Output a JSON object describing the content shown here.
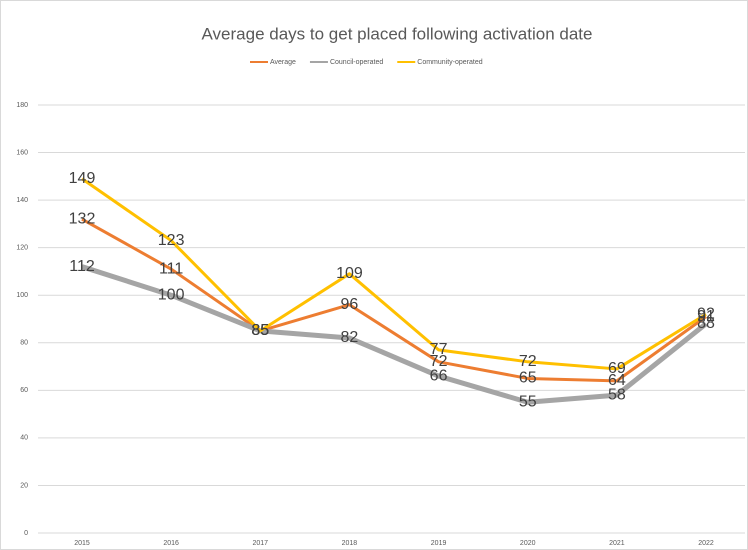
{
  "chart_data": {
    "type": "line",
    "title": "Average days to get placed following activation date",
    "categories": [
      "2015",
      "2016",
      "2017",
      "2018",
      "2019",
      "2020",
      "2021",
      "2022"
    ],
    "series": [
      {
        "name": "Average",
        "color": "#ed7d31",
        "width": 3,
        "values": [
          132,
          111,
          85,
          96,
          72,
          65,
          64,
          91
        ]
      },
      {
        "name": "Council-operated",
        "color": "#a5a5a5",
        "width": 5,
        "values": [
          112,
          100,
          85,
          82,
          66,
          55,
          58,
          88
        ]
      },
      {
        "name": "Community-operated",
        "color": "#ffc000",
        "width": 3,
        "values": [
          149,
          123,
          85,
          109,
          77,
          72,
          69,
          92
        ]
      }
    ],
    "ylim": [
      0,
      180
    ],
    "yticks": [
      0,
      20,
      40,
      60,
      80,
      100,
      120,
      140,
      160,
      180
    ],
    "grid": true,
    "legend": "top"
  }
}
